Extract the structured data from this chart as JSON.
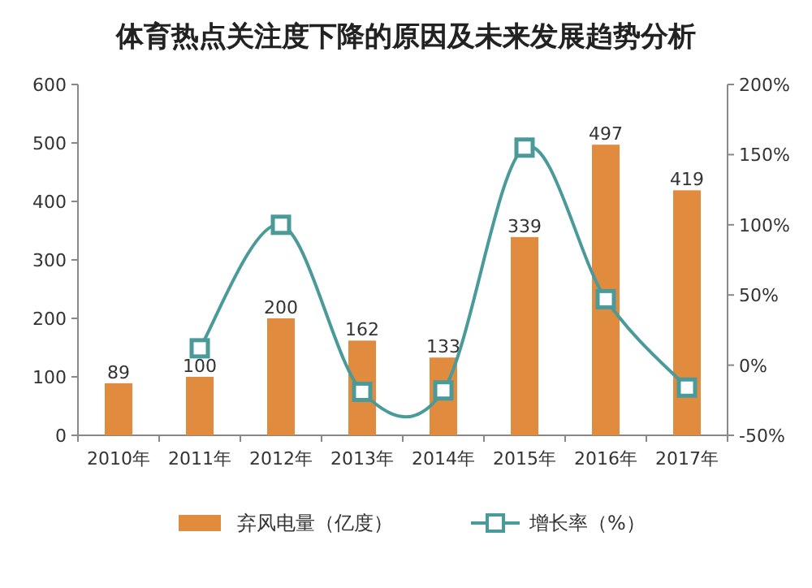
{
  "chart_data": {
    "type": "bar",
    "title": "体育热点关注度下降的原因及未来发展趋势分析",
    "categories": [
      "2010年",
      "2011年",
      "2012年",
      "2013年",
      "2014年",
      "2015年",
      "2016年",
      "2017年"
    ],
    "ylim": [
      0,
      600
    ],
    "yticks": [
      0,
      100,
      200,
      300,
      400,
      500,
      600
    ],
    "y2lim": [
      -50,
      200
    ],
    "y2ticks": [
      {
        "value": -50,
        "label": "-50%"
      },
      {
        "value": 0,
        "label": "0%"
      },
      {
        "value": 50,
        "label": "50%"
      },
      {
        "value": 100,
        "label": "100%"
      },
      {
        "value": 150,
        "label": "150%"
      },
      {
        "value": 200,
        "label": "200%"
      }
    ],
    "series": [
      {
        "name": "弃风电量（亿度）",
        "color": "#e08b3e",
        "values": [
          89,
          100,
          200,
          162,
          133,
          339,
          497,
          419
        ],
        "value_labels": [
          "89",
          "100",
          "200",
          "162",
          "133",
          "339",
          "497",
          "419"
        ]
      },
      {
        "name": "增长率（%）",
        "type": "line",
        "axis": "y2",
        "color": "#4a9a9a",
        "marker": "square",
        "values": [
          null,
          12,
          100,
          -19,
          -18,
          155,
          47,
          -16
        ]
      }
    ],
    "legend": "bottom",
    "grid": false
  }
}
